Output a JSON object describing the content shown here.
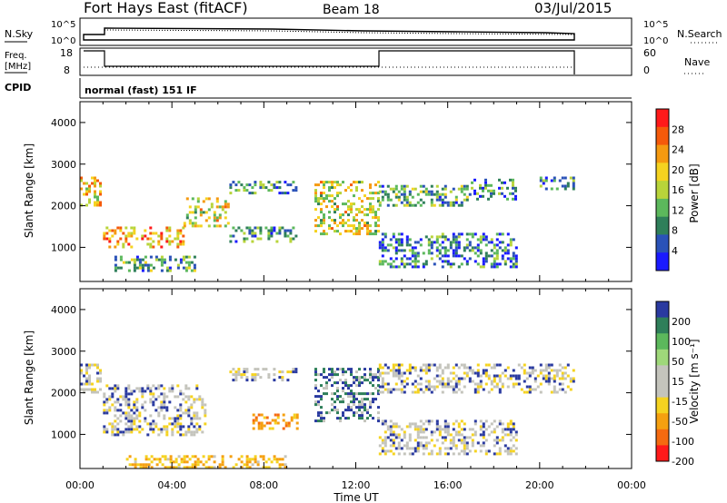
{
  "header": {
    "title": "Fort Hays East (fitACF)",
    "beam": "Beam 18",
    "date": "03/Jul/2015"
  },
  "params": {
    "nsky_label": "N.Sky",
    "nsky_ticks": [
      "10^5",
      "10^0"
    ],
    "nsearch_label": "N.Search",
    "freq_label": "Freq.",
    "freq_unit": "[MHz]",
    "freq_ticks": [
      "18",
      "8"
    ],
    "nave_label": "Nave",
    "nave_ticks": [
      "60",
      "0"
    ],
    "cpid_label": "CPID",
    "cpid_value": "normal (fast) 151 IF"
  },
  "colors": {
    "power": [
      "#1a1aff",
      "#2a52b8",
      "#2f7f5a",
      "#5cb85c",
      "#b8d43a",
      "#f5d320",
      "#f59a10",
      "#f55a0a",
      "#ff1a1a"
    ],
    "velocity_pos": [
      "#2a3aa0",
      "#2f7f5a",
      "#5cb85c",
      "#9fd87a"
    ],
    "velocity_ground": "#c4c4bc",
    "velocity_neg": [
      "#f5d320",
      "#f5a010",
      "#f56a10",
      "#ff1a1a"
    ]
  },
  "chart_data": [
    {
      "type": "heatmap",
      "name": "power",
      "xlabel": "Time UT",
      "ylabel": "Slant Range [km]",
      "x_ticks": [
        "00:00",
        "04:00",
        "08:00",
        "12:00",
        "16:00",
        "20:00",
        "00:00"
      ],
      "y_ticks": [
        "4000",
        "3000",
        "2000",
        "1000"
      ],
      "x_range_hours": [
        0,
        24
      ],
      "y_range_km": [
        180,
        4500
      ],
      "colorbar": {
        "label": "Power [dB]",
        "ticks": [
          "28",
          "24",
          "20",
          "16",
          "12",
          "8",
          "4"
        ],
        "range": [
          0,
          32
        ]
      },
      "echo_regions": [
        {
          "t": [
            0.0,
            1.0
          ],
          "range_km": [
            2000,
            2700
          ],
          "level": 0.6
        },
        {
          "t": [
            1.0,
            4.5
          ],
          "range_km": [
            950,
            1500
          ],
          "level": 0.7
        },
        {
          "t": [
            4.5,
            6.5
          ],
          "range_km": [
            1500,
            2200
          ],
          "level": 0.55
        },
        {
          "t": [
            1.5,
            5.0
          ],
          "range_km": [
            400,
            800
          ],
          "level": 0.35
        },
        {
          "t": [
            6.5,
            9.5
          ],
          "range_km": [
            1100,
            1500
          ],
          "level": 0.3
        },
        {
          "t": [
            6.5,
            9.5
          ],
          "range_km": [
            2250,
            2600
          ],
          "level": 0.3
        },
        {
          "t": [
            10.2,
            13.0
          ],
          "range_km": [
            1300,
            2600
          ],
          "level": 0.55
        },
        {
          "t": [
            13.0,
            19.0
          ],
          "range_km": [
            500,
            1350
          ],
          "level": 0.25
        },
        {
          "t": [
            13.0,
            17.0
          ],
          "range_km": [
            1950,
            2500
          ],
          "level": 0.35
        },
        {
          "t": [
            17.0,
            19.0
          ],
          "range_km": [
            2100,
            2650
          ],
          "level": 0.3
        },
        {
          "t": [
            20.0,
            21.5
          ],
          "range_km": [
            2400,
            2700
          ],
          "level": 0.3
        }
      ]
    },
    {
      "type": "heatmap",
      "name": "velocity",
      "xlabel": "Time UT",
      "ylabel": "Slant Range [km]",
      "x_ticks": [
        "00:00",
        "04:00",
        "08:00",
        "12:00",
        "16:00",
        "20:00",
        "00:00"
      ],
      "y_ticks": [
        "4000",
        "3000",
        "2000",
        "1000"
      ],
      "x_range_hours": [
        0,
        24
      ],
      "y_range_km": [
        180,
        4500
      ],
      "colorbar": {
        "label": "Velocity [m s⁻¹]",
        "ticks": [
          "200",
          "100",
          "50",
          "15",
          "-15",
          "-50",
          "-100",
          "-200"
        ],
        "range": [
          -250,
          250
        ]
      },
      "echo_regions": [
        {
          "t": [
            0.0,
            1.0
          ],
          "range_km": [
            2000,
            2700
          ],
          "v": -10
        },
        {
          "t": [
            1.0,
            5.5
          ],
          "range_km": [
            950,
            2200
          ],
          "v": 0
        },
        {
          "t": [
            6.5,
            9.5
          ],
          "range_km": [
            2250,
            2600
          ],
          "v": 0
        },
        {
          "t": [
            7.5,
            9.5
          ],
          "range_km": [
            1100,
            1500
          ],
          "v": -60
        },
        {
          "t": [
            10.2,
            13.0
          ],
          "range_km": [
            1300,
            2600
          ],
          "v": 30
        },
        {
          "t": [
            13.0,
            19.0
          ],
          "range_km": [
            500,
            1350
          ],
          "v": 0
        },
        {
          "t": [
            13.0,
            21.5
          ],
          "range_km": [
            1950,
            2700
          ],
          "v": 0
        },
        {
          "t": [
            2.0,
            9.0
          ],
          "range_km": [
            200,
            500
          ],
          "v": -40
        }
      ]
    }
  ]
}
